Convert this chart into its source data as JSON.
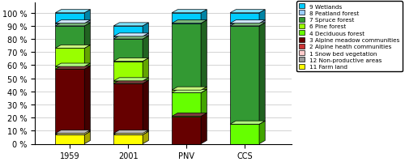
{
  "categories": [
    "1959",
    "2001",
    "PNV",
    "CCS"
  ],
  "layer_order": [
    "11 Farm land",
    "12 Non-productive areas",
    "1 Snow bed vegetation",
    "2 Alpine heath communities",
    "3 Alpine meadow communities",
    "4 Deciduous forest",
    "6 Pine forest",
    "7 Spruce forest",
    "8 Peatland forest",
    "9 Wetlands"
  ],
  "legend_order": [
    "9 Wetlands",
    "8 Peatland forest",
    "7 Spruce forest",
    "6 Pine forest",
    "4 Deciduous forest",
    "3 Alpine meadow communities",
    "2 Alpine heath communities",
    "1 Snow bed vegetation",
    "12 Non-productive areas",
    "11 Farm land"
  ],
  "color_map": {
    "9 Wetlands": "#00CCFF",
    "8 Peatland forest": "#99CCFF",
    "7 Spruce forest": "#339933",
    "6 Pine forest": "#99FF00",
    "4 Deciduous forest": "#66FF00",
    "3 Alpine meadow communities": "#660000",
    "2 Alpine heath communities": "#CC3333",
    "1 Snow bed vegetation": "#FFCCCC",
    "12 Non-productive areas": "#999999",
    "11 Farm land": "#FFFF00"
  },
  "data": {
    "11 Farm land": [
      7,
      7,
      0,
      0
    ],
    "12 Non-productive areas": [
      1,
      1,
      0,
      0
    ],
    "1 Snow bed vegetation": [
      0,
      0,
      0,
      0
    ],
    "2 Alpine heath communities": [
      0,
      0,
      0,
      0
    ],
    "3 Alpine meadow communities": [
      49,
      38,
      21,
      0
    ],
    "4 Deciduous forest": [
      2,
      2,
      18,
      15
    ],
    "6 Pine forest": [
      14,
      15,
      2,
      0
    ],
    "7 Spruce forest": [
      17,
      17,
      51,
      75
    ],
    "8 Peatland forest": [
      2,
      2,
      0,
      2
    ],
    "9 Wetlands": [
      8,
      8,
      8,
      8
    ]
  },
  "bar_width": 0.5,
  "depth": 0.12,
  "ylim": [
    0,
    108
  ],
  "yticks": [
    0,
    10,
    20,
    30,
    40,
    50,
    60,
    70,
    80,
    90,
    100
  ],
  "ytick_labels": [
    "0 %",
    "10 %",
    "20 %",
    "30 %",
    "40 %",
    "50 %",
    "60 %",
    "70 %",
    "80 %",
    "90 %",
    "100 %"
  ],
  "figsize": [
    5.0,
    2.01
  ],
  "dpi": 100,
  "background_color": "#FFFFFF",
  "plot_bg_color": "#FFFFFF"
}
